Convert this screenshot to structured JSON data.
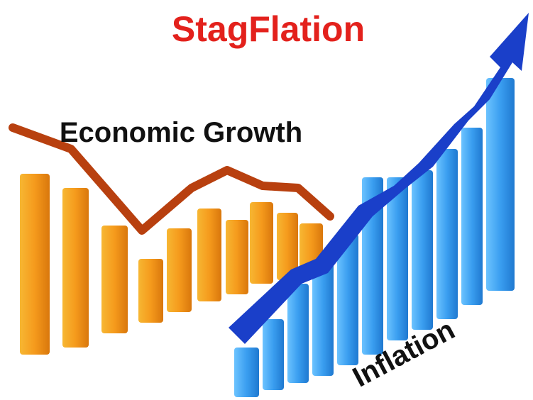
{
  "title": "StagFlation",
  "growth_label": "Economic Growth",
  "inflation_label": "Inflation"
}
